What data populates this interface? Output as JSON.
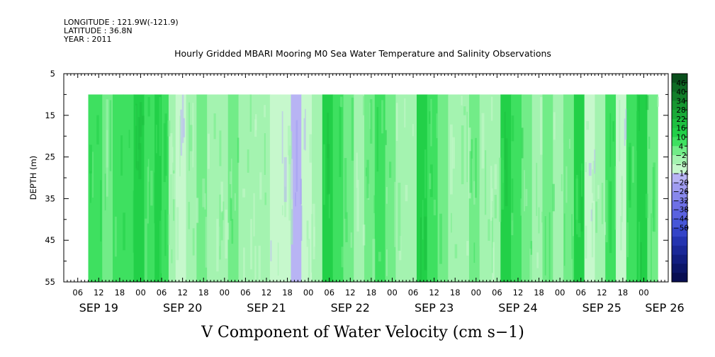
{
  "header": {
    "longitude": "LONGITUDE : 121.9W(-121.9)",
    "latitude": "LATITUDE : 36.8N",
    "year": "YEAR : 2011"
  },
  "chart_data": {
    "type": "heatmap",
    "title": "Hourly Gridded MBARI Mooring M0 Sea Water Temperature and Salinity Observations",
    "xlabel": "V Component of Water Velocity (cm s−1)",
    "ylabel": "DEPTH (m)",
    "ylim": [
      5,
      55
    ],
    "y_inverted": true,
    "y_ticks": [
      "5",
      "15",
      "25",
      "35",
      "45",
      "55"
    ],
    "xlim_hours": [
      0,
      173
    ],
    "x_hour_labels": [
      {
        "h": 4,
        "label": "06"
      },
      {
        "h": 10,
        "label": "12"
      },
      {
        "h": 16,
        "label": "18"
      },
      {
        "h": 22,
        "label": "00"
      },
      {
        "h": 28,
        "label": "06"
      },
      {
        "h": 34,
        "label": "12"
      },
      {
        "h": 40,
        "label": "18"
      },
      {
        "h": 46,
        "label": "00"
      },
      {
        "h": 52,
        "label": "06"
      },
      {
        "h": 58,
        "label": "12"
      },
      {
        "h": 64,
        "label": "18"
      },
      {
        "h": 70,
        "label": "00"
      },
      {
        "h": 76,
        "label": "06"
      },
      {
        "h": 82,
        "label": "12"
      },
      {
        "h": 88,
        "label": "18"
      },
      {
        "h": 94,
        "label": "00"
      },
      {
        "h": 100,
        "label": "06"
      },
      {
        "h": 106,
        "label": "12"
      },
      {
        "h": 112,
        "label": "18"
      },
      {
        "h": 118,
        "label": "00"
      },
      {
        "h": 124,
        "label": "06"
      },
      {
        "h": 130,
        "label": "12"
      },
      {
        "h": 136,
        "label": "18"
      },
      {
        "h": 142,
        "label": "00"
      },
      {
        "h": 148,
        "label": "06"
      },
      {
        "h": 154,
        "label": "12"
      },
      {
        "h": 160,
        "label": "18"
      },
      {
        "h": 166,
        "label": "00"
      }
    ],
    "x_date_labels": [
      {
        "h": 10,
        "label": "SEP 19"
      },
      {
        "h": 34,
        "label": "SEP 20"
      },
      {
        "h": 58,
        "label": "SEP 21"
      },
      {
        "h": 82,
        "label": "SEP 22"
      },
      {
        "h": 106,
        "label": "SEP 23"
      },
      {
        "h": 130,
        "label": "SEP 24"
      },
      {
        "h": 154,
        "label": "SEP 25"
      },
      {
        "h": 172,
        "label": "SEP 26"
      }
    ],
    "data_extent": {
      "hour_start": 7,
      "hour_end": 170,
      "depth_top": 10,
      "depth_bottom": 55
    },
    "bands": [
      {
        "h": 7,
        "v": 6
      },
      {
        "h": 11,
        "v": 4
      },
      {
        "h": 14,
        "v": 10
      },
      {
        "h": 17,
        "v": 8
      },
      {
        "h": 20,
        "v": 16
      },
      {
        "h": 23,
        "v": 10
      },
      {
        "h": 26,
        "v": 14
      },
      {
        "h": 28,
        "v": 6
      },
      {
        "h": 30,
        "v": -4
      },
      {
        "h": 32,
        "v": -8
      },
      {
        "h": 35,
        "v": -2
      },
      {
        "h": 38,
        "v": 4
      },
      {
        "h": 41,
        "v": -2
      },
      {
        "h": 44,
        "v": -4
      },
      {
        "h": 47,
        "v": 2
      },
      {
        "h": 50,
        "v": -4
      },
      {
        "h": 53,
        "v": -2
      },
      {
        "h": 56,
        "v": -6
      },
      {
        "h": 59,
        "v": -12
      },
      {
        "h": 62,
        "v": -8
      },
      {
        "h": 65,
        "v": -14
      },
      {
        "h": 68,
        "v": -10
      },
      {
        "h": 71,
        "v": -6
      },
      {
        "h": 74,
        "v": 14
      },
      {
        "h": 77,
        "v": 8
      },
      {
        "h": 80,
        "v": 4
      },
      {
        "h": 83,
        "v": -2
      },
      {
        "h": 86,
        "v": 4
      },
      {
        "h": 89,
        "v": 10
      },
      {
        "h": 92,
        "v": 4
      },
      {
        "h": 95,
        "v": -4
      },
      {
        "h": 98,
        "v": -2
      },
      {
        "h": 101,
        "v": 14
      },
      {
        "h": 104,
        "v": 10
      },
      {
        "h": 107,
        "v": 4
      },
      {
        "h": 110,
        "v": -4
      },
      {
        "h": 113,
        "v": -6
      },
      {
        "h": 116,
        "v": 4
      },
      {
        "h": 119,
        "v": -2
      },
      {
        "h": 122,
        "v": -6
      },
      {
        "h": 125,
        "v": 14
      },
      {
        "h": 128,
        "v": 10
      },
      {
        "h": 131,
        "v": 4
      },
      {
        "h": 134,
        "v": -4
      },
      {
        "h": 137,
        "v": 4
      },
      {
        "h": 140,
        "v": -4
      },
      {
        "h": 143,
        "v": 4
      },
      {
        "h": 146,
        "v": 16
      },
      {
        "h": 149,
        "v": -8
      },
      {
        "h": 152,
        "v": -6
      },
      {
        "h": 155,
        "v": 8
      },
      {
        "h": 158,
        "v": -10
      },
      {
        "h": 161,
        "v": 10
      },
      {
        "h": 164,
        "v": 14
      },
      {
        "h": 167,
        "v": 4
      },
      {
        "h": 170,
        "v": -2
      }
    ],
    "colorbar": {
      "labels": [
        "46",
        "40",
        "34",
        "28",
        "22",
        "16",
        "10",
        "4",
        "−2",
        "−8",
        "−14",
        "−20",
        "−26",
        "−32",
        "−38",
        "−44",
        "−50"
      ],
      "colors": [
        "#0a4f1c",
        "#0e6a24",
        "#127f2a",
        "#169630",
        "#1aaa38",
        "#1ec040",
        "#22d048",
        "#3ee060",
        "#72ec88",
        "#a4f3b0",
        "#c6f8cc",
        "#b8b4f4",
        "#a09cf0",
        "#8888ec",
        "#6e70e6",
        "#5a62e0",
        "#4656d8",
        "#3444c8",
        "#2434b0",
        "#1a2898",
        "#121e80",
        "#0c1668",
        "#080e52"
      ]
    }
  }
}
